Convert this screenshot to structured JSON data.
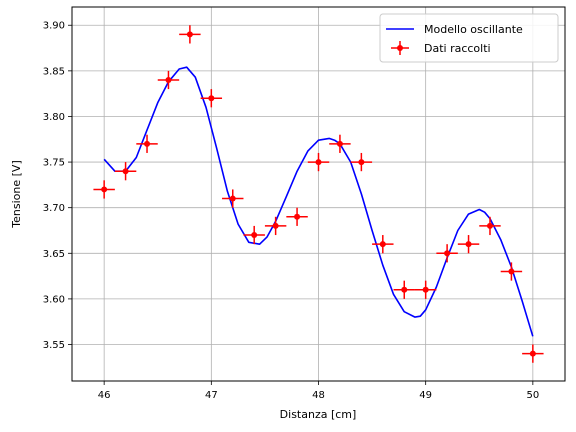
{
  "chart_data": {
    "type": "scatter",
    "title": "",
    "xlabel": "Distanza [cm]",
    "ylabel": "Tensione [V]",
    "xlim": [
      45.7,
      50.3
    ],
    "ylim": [
      3.51,
      3.92
    ],
    "x_ticks": [
      46,
      47,
      48,
      49,
      50
    ],
    "y_ticks": [
      3.55,
      3.6,
      3.65,
      3.7,
      3.75,
      3.8,
      3.85,
      3.9
    ],
    "x_tick_labels": [
      "46",
      "47",
      "48",
      "49",
      "50"
    ],
    "y_tick_labels": [
      "3.55",
      "3.60",
      "3.65",
      "3.70",
      "3.75",
      "3.80",
      "3.85",
      "3.90"
    ],
    "grid": true,
    "legend_position": "top-right",
    "colors": {
      "model": "#0000ff",
      "data": "#ff0000",
      "grid": "#b0b0b0"
    },
    "series": [
      {
        "name": "Modello oscillante",
        "kind": "line",
        "x": [
          46.0,
          46.1,
          46.2,
          46.3,
          46.4,
          46.5,
          46.6,
          46.7,
          46.77,
          46.85,
          46.95,
          47.05,
          47.15,
          47.25,
          47.35,
          47.45,
          47.52,
          47.6,
          47.7,
          47.8,
          47.9,
          48.0,
          48.1,
          48.15,
          48.2,
          48.3,
          48.4,
          48.5,
          48.6,
          48.7,
          48.8,
          48.9,
          48.95,
          49.0,
          49.1,
          49.2,
          49.3,
          49.4,
          49.5,
          49.55,
          49.6,
          49.7,
          49.8,
          49.9,
          50.0
        ],
        "y": [
          3.753,
          3.74,
          3.74,
          3.755,
          3.785,
          3.815,
          3.838,
          3.852,
          3.854,
          3.843,
          3.81,
          3.765,
          3.718,
          3.682,
          3.662,
          3.66,
          3.668,
          3.685,
          3.712,
          3.74,
          3.762,
          3.774,
          3.776,
          3.774,
          3.77,
          3.75,
          3.715,
          3.675,
          3.637,
          3.605,
          3.586,
          3.58,
          3.581,
          3.588,
          3.613,
          3.645,
          3.675,
          3.693,
          3.698,
          3.695,
          3.688,
          3.665,
          3.635,
          3.598,
          3.559
        ]
      },
      {
        "name": "Dati raccolti",
        "kind": "errorbar",
        "x": [
          46.0,
          46.2,
          46.4,
          46.6,
          46.8,
          47.0,
          47.2,
          47.4,
          47.6,
          47.8,
          48.0,
          48.2,
          48.4,
          48.6,
          48.8,
          49.0,
          49.2,
          49.4,
          49.6,
          49.8,
          50.0
        ],
        "y": [
          3.72,
          3.74,
          3.77,
          3.84,
          3.89,
          3.82,
          3.71,
          3.67,
          3.68,
          3.69,
          3.75,
          3.77,
          3.75,
          3.66,
          3.61,
          3.61,
          3.65,
          3.66,
          3.68,
          3.63,
          3.54
        ],
        "x_err": 0.1,
        "y_err": 0.01
      }
    ]
  }
}
